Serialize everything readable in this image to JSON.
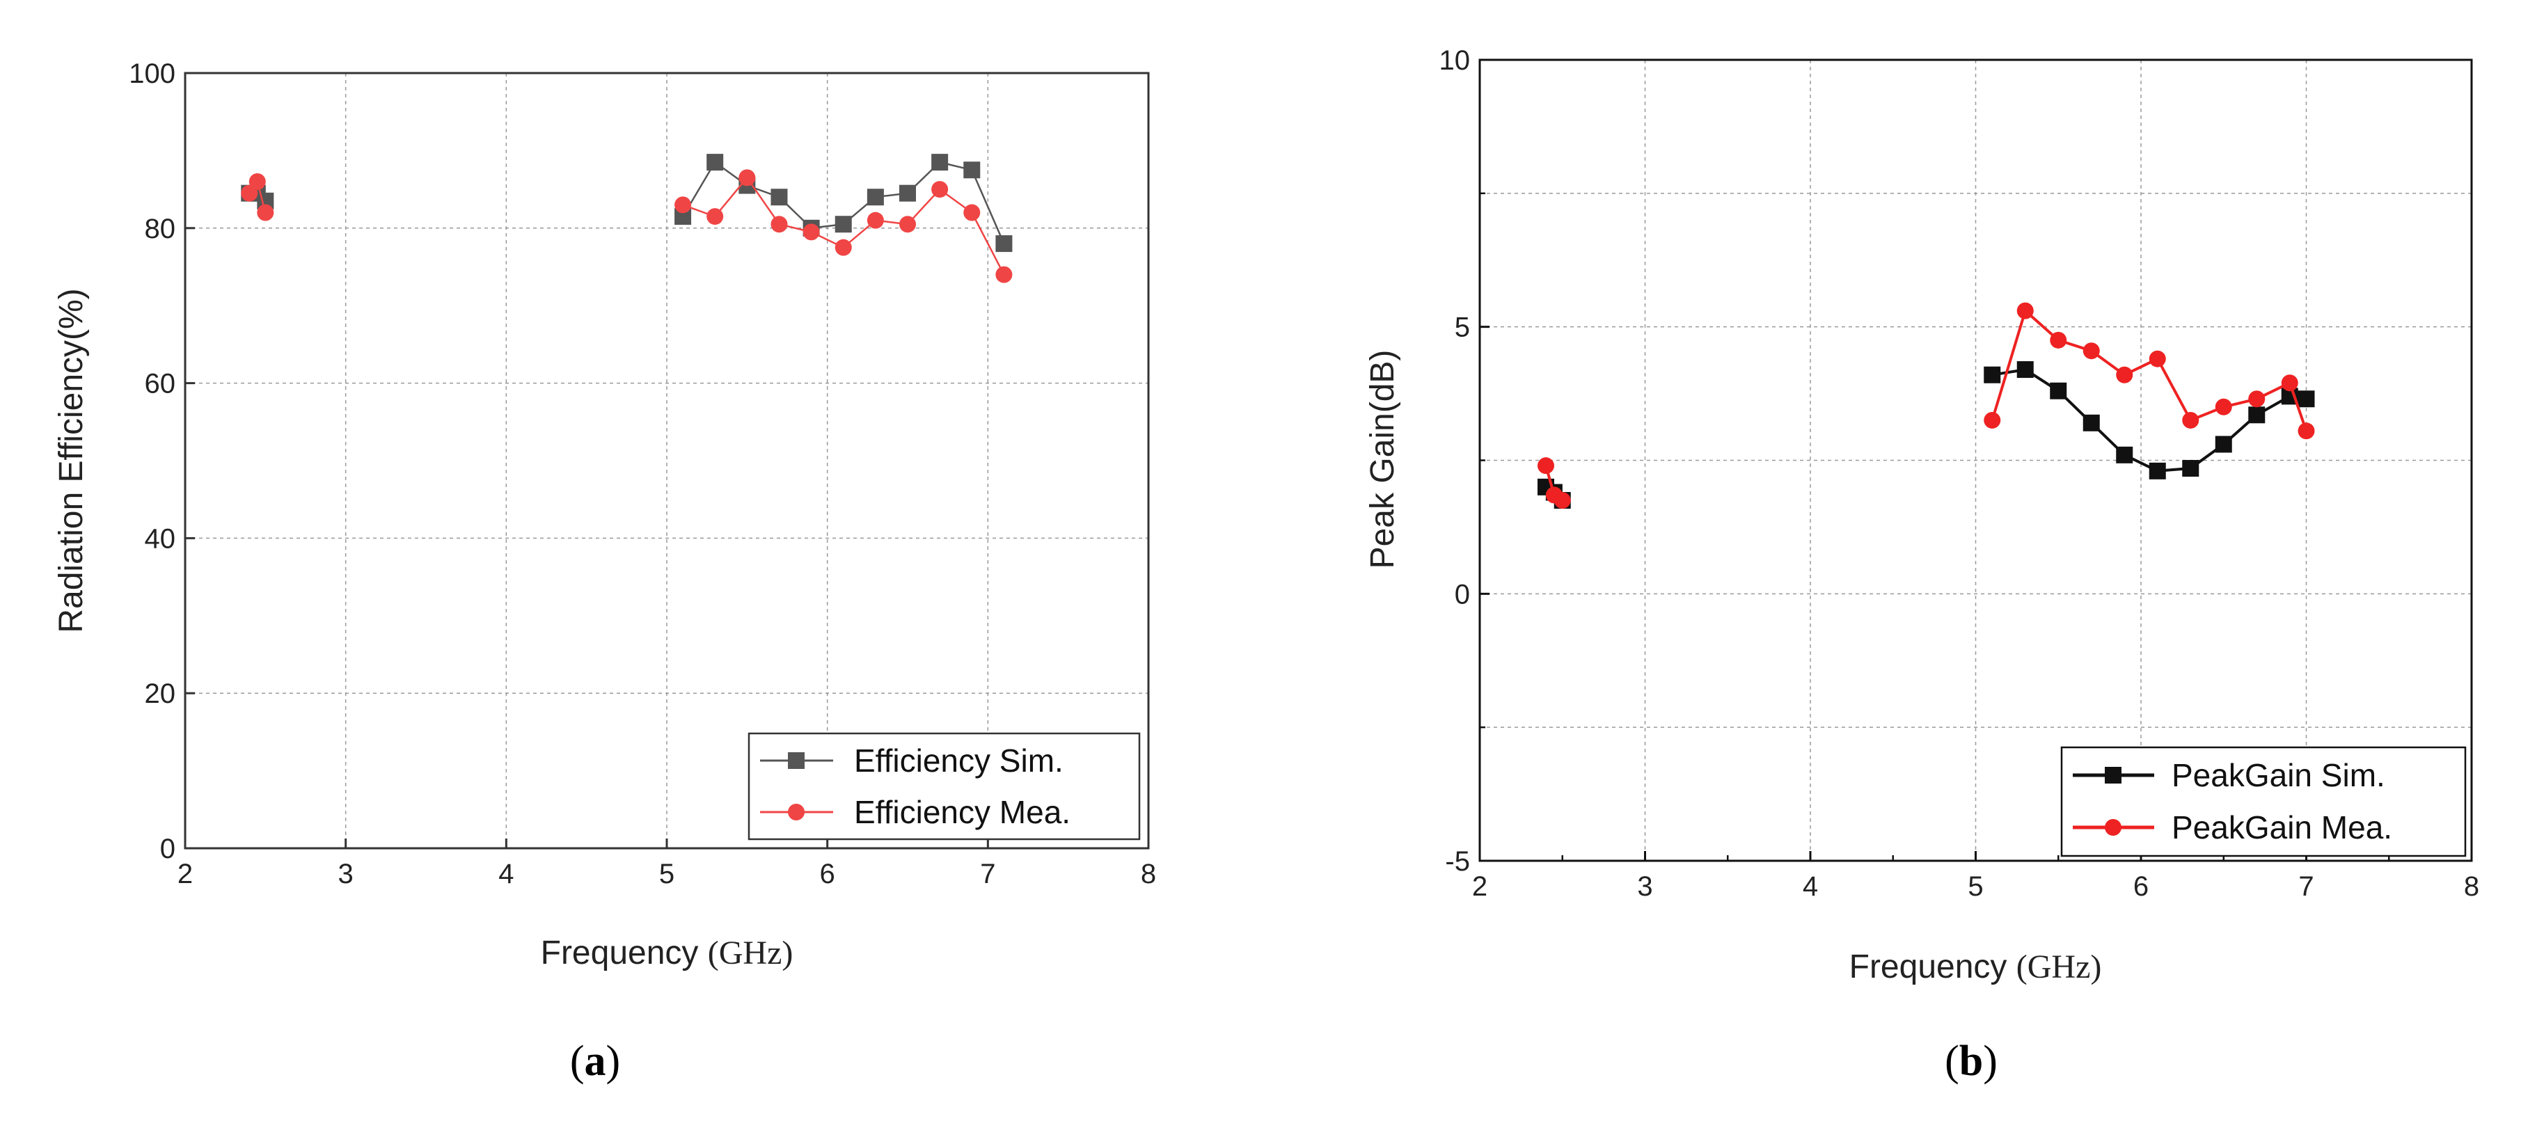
{
  "chart_data": [
    {
      "panel": "a",
      "type": "line",
      "xlabel": "Frequency",
      "xlabel_unit": "(GHz)",
      "ylabel": "Radiation Efficiency(%)",
      "xlim": [
        2,
        8
      ],
      "ylim": [
        0,
        100
      ],
      "xticks": [
        2,
        3,
        4,
        5,
        6,
        7,
        8
      ],
      "yticks": [
        0,
        20,
        40,
        60,
        80,
        100
      ],
      "grid": true,
      "legend_position": "bottom-right",
      "series": [
        {
          "name": "Efficiency Sim.",
          "color": "#555555",
          "marker": "square",
          "segments": [
            {
              "x": [
                2.4,
                2.45,
                2.5
              ],
              "y": [
                84.5,
                84.5,
                83.5
              ]
            },
            {
              "x": [
                5.1,
                5.3,
                5.5,
                5.7,
                5.9,
                6.1,
                6.3,
                6.5,
                6.7,
                6.9,
                7.1
              ],
              "y": [
                81.5,
                88.5,
                85.5,
                84,
                80,
                80.5,
                84,
                84.5,
                88.5,
                87.5,
                78
              ]
            }
          ]
        },
        {
          "name": "Efficiency Mea.",
          "color": "#f04545",
          "marker": "circle",
          "segments": [
            {
              "x": [
                2.4,
                2.45,
                2.5
              ],
              "y": [
                84.5,
                86,
                82
              ]
            },
            {
              "x": [
                5.1,
                5.3,
                5.5,
                5.7,
                5.9,
                6.1,
                6.3,
                6.5,
                6.7,
                6.9,
                7.1
              ],
              "y": [
                83,
                81.5,
                86.5,
                80.5,
                79.5,
                77.5,
                81,
                80.5,
                85,
                82,
                74
              ]
            }
          ]
        }
      ]
    },
    {
      "panel": "b",
      "type": "line",
      "xlabel": "Frequency",
      "xlabel_unit": "(GHz)",
      "ylabel": "Peak Gain(dB)",
      "xlim": [
        2,
        8
      ],
      "ylim": [
        -5,
        10
      ],
      "xticks": [
        2,
        3,
        4,
        5,
        6,
        7,
        8
      ],
      "yticks": [
        -5,
        0,
        5,
        10
      ],
      "grid": true,
      "legend_position": "bottom-right",
      "series": [
        {
          "name": "PeakGain Sim.",
          "color": "#111111",
          "marker": "square",
          "segments": [
            {
              "x": [
                2.4,
                2.45,
                2.5
              ],
              "y": [
                2,
                1.9,
                1.75
              ]
            },
            {
              "x": [
                5.1,
                5.3,
                5.5,
                5.7,
                5.9,
                6.1,
                6.3,
                6.5,
                6.7,
                6.9,
                7.0
              ],
              "y": [
                4.1,
                4.2,
                3.8,
                3.2,
                2.6,
                2.3,
                2.35,
                2.8,
                3.35,
                3.7,
                3.65
              ]
            }
          ]
        },
        {
          "name": "PeakGain Mea.",
          "color": "#ee2222",
          "marker": "circle",
          "segments": [
            {
              "x": [
                2.4,
                2.45,
                2.5
              ],
              "y": [
                2.4,
                1.85,
                1.75
              ]
            },
            {
              "x": [
                5.1,
                5.3,
                5.5,
                5.7,
                5.9,
                6.1,
                6.3,
                6.5,
                6.7,
                6.9,
                7.0
              ],
              "y": [
                3.25,
                5.3,
                4.75,
                4.55,
                4.1,
                4.4,
                3.25,
                3.5,
                3.65,
                3.95,
                3.05
              ]
            }
          ]
        }
      ]
    }
  ]
}
